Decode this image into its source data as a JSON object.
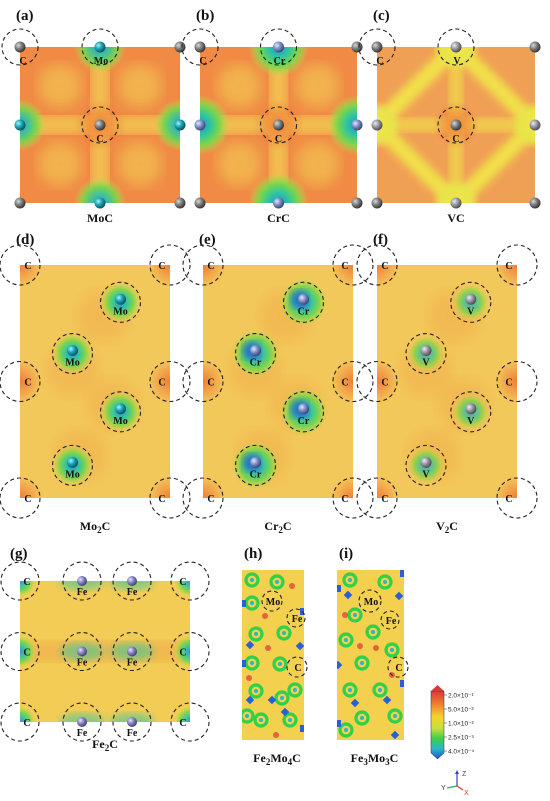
{
  "figure": {
    "panels": [
      {
        "label": "(a)",
        "compound": "MoC",
        "metal": "Mo",
        "metal_color": "#1aa8b8"
      },
      {
        "label": "(b)",
        "compound": "CrC",
        "metal": "Cr",
        "metal_color": "#7f92c9"
      },
      {
        "label": "(c)",
        "compound": "VC",
        "metal": "V",
        "metal_color": "#8c8c8c"
      },
      {
        "label": "(d)",
        "compound": "Mo",
        "compound_sub": "2",
        "compound_tail": "C",
        "metal": "Mo",
        "metal_color": "#1aa8b8"
      },
      {
        "label": "(e)",
        "compound": "Cr",
        "compound_sub": "2",
        "compound_tail": "C",
        "metal": "Cr",
        "metal_color": "#7f92c9"
      },
      {
        "label": "(f)",
        "compound": "V",
        "compound_sub": "2",
        "compound_tail": "C",
        "metal": "V",
        "metal_color": "#b0b0bc"
      },
      {
        "label": "(g)",
        "compound": "Fe",
        "compound_sub": "2",
        "compound_tail": "C",
        "metal": "Fe",
        "metal_color": "#8a86c0"
      },
      {
        "label": "(h)",
        "compound": "Fe",
        "compound_sub": "2",
        "compound_mid": "Mo",
        "compound_sub2": "4",
        "compound_tail": "C"
      },
      {
        "label": "(i)",
        "compound": "Fe",
        "compound_sub": "3",
        "compound_mid": "Mo",
        "compound_sub2": "3",
        "compound_tail": "C"
      }
    ],
    "carbon_label": "C",
    "hmo_labels": [
      "Mo",
      "Fe",
      "C"
    ],
    "colorbar": {
      "ticks": [
        "2.0×10⁻¹",
        "5.0×10⁻²",
        "1.0×10⁻²",
        "2.5×10⁻³",
        "4.0×10⁻⁴"
      ],
      "colors": [
        "#d83a3a",
        "#f07a2e",
        "#f5d42a",
        "#c7e03a",
        "#3ccf4a",
        "#27b7c9",
        "#1b4fd6"
      ]
    },
    "axes": {
      "z": "Z",
      "y": "Y",
      "x": "X"
    },
    "colors": {
      "background_orange": "#f08a45",
      "background_yellow": "#f3d455",
      "green": "#5ad64a",
      "cyan": "#2ec6c0",
      "blue": "#2a5fd8",
      "carbon": "#6f6f6f"
    }
  }
}
